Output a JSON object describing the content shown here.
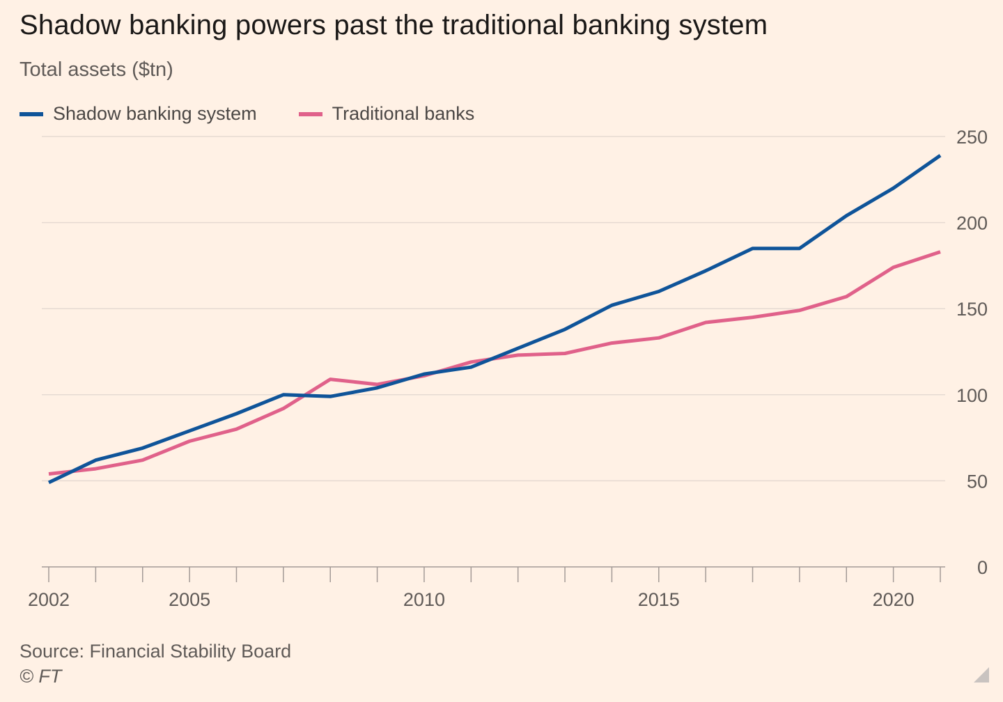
{
  "header": {
    "title": "Shadow banking powers past the traditional banking system",
    "subtitle": "Total assets ($tn)"
  },
  "footer": {
    "source": "Source: Financial Stability Board",
    "copyright": "© FT"
  },
  "colors": {
    "background": "#fff1e5",
    "shadow": "#0f5499",
    "traditional": "#e0618a",
    "grid": "#e6dad2",
    "axis": "#a39a96",
    "tick_label": "#5f5a57"
  },
  "chart_data": {
    "type": "line",
    "title": "Shadow banking powers past the traditional banking system",
    "subtitle": "Total assets ($tn)",
    "xlabel": "",
    "ylabel": "",
    "x": [
      2002,
      2003,
      2004,
      2005,
      2006,
      2007,
      2008,
      2009,
      2010,
      2011,
      2012,
      2013,
      2014,
      2015,
      2016,
      2017,
      2018,
      2019,
      2020,
      2021
    ],
    "series": [
      {
        "name": "Shadow banking system",
        "color": "#0f5499",
        "values": [
          49,
          62,
          69,
          79,
          89,
          100,
          99,
          104,
          112,
          116,
          127,
          138,
          152,
          160,
          172,
          185,
          185,
          204,
          220,
          239
        ]
      },
      {
        "name": "Traditional banks",
        "color": "#e0618a",
        "values": [
          54,
          57,
          62,
          73,
          80,
          92,
          109,
          106,
          111,
          119,
          123,
          124,
          130,
          133,
          142,
          145,
          149,
          157,
          174,
          183
        ]
      }
    ],
    "xlim": [
      2002,
      2021
    ],
    "ylim": [
      0,
      250
    ],
    "yticks": [
      0,
      50,
      100,
      150,
      200,
      250
    ],
    "xtick_labels": [
      2002,
      2005,
      2010,
      2015,
      2020
    ],
    "grid": true,
    "y_axis_side": "right",
    "legend_position": "top-left"
  }
}
